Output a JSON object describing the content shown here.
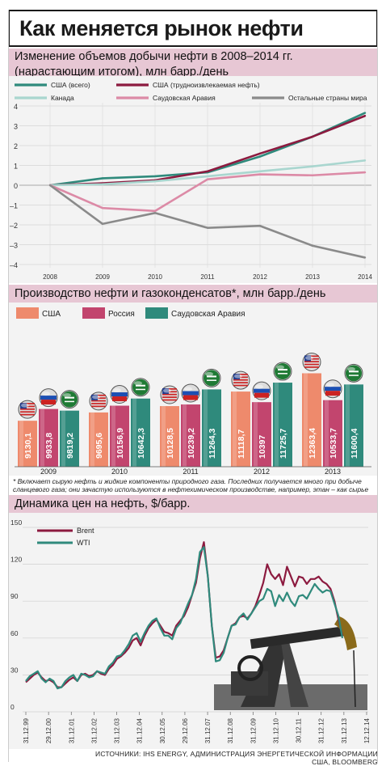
{
  "title": "Как меняется рынок нефти",
  "section1": {
    "title_line1": "Изменение объемов добычи нефти в 2008–2014 гг.",
    "title_line2": "(нарастающим итогом), млн барр./день"
  },
  "section2": {
    "title": "Производство нефти и газоконденсатов*, млн барр./день"
  },
  "section3": {
    "title": "Динамика цен на нефть, $/барр."
  },
  "footnote": "* Включает сырую нефть и жидкие компоненты природного газа. Последних получается много при добыче сланцевого газа; они зачастую используются в нефтехимическом производстве, например, этан – как сырье для пластмасс.",
  "source": "ИСТОЧНИКИ: IHS ENERGY, АДМИНИСТРАЦИЯ ЭНЕРГЕТИЧЕСКОЙ ИНФОРМАЦИИ США, BLOOMBERG",
  "colors": {
    "usa_total": "#2f8a7c",
    "usa_tight": "#8c1a3f",
    "canada": "#a9d6cf",
    "saudi_line": "#dc8aa6",
    "others": "#8a8a8a",
    "bar_usa": "#ee8a6c",
    "bar_russia": "#c2456e",
    "bar_saudi": "#2f8a7c",
    "brent": "#8c1a3f",
    "wti": "#2f8a7c",
    "band": "#e7c7d4"
  },
  "chart_data": [
    {
      "type": "line",
      "x": [
        "2008",
        "2009",
        "2010",
        "2011",
        "2012",
        "2013",
        "2014"
      ],
      "ylim": [
        -4,
        4
      ],
      "yticks": [
        4,
        3,
        2,
        1,
        0,
        -1,
        -2,
        -3,
        -4
      ],
      "grid": true,
      "legend_position": "top",
      "series": [
        {
          "name": "США (всего)",
          "values": [
            0,
            0.35,
            0.45,
            0.65,
            1.45,
            2.45,
            3.65
          ]
        },
        {
          "name": "США (трудноизвлекаемая нефть)",
          "values": [
            0,
            0.1,
            0.25,
            0.7,
            1.6,
            2.45,
            3.5
          ]
        },
        {
          "name": "Канада",
          "values": [
            0,
            0.05,
            0.2,
            0.45,
            0.7,
            0.95,
            1.25
          ]
        },
        {
          "name": "Саудовская Аравия",
          "values": [
            0,
            -1.15,
            -1.3,
            0.3,
            0.55,
            0.5,
            0.65
          ]
        },
        {
          "name": "Остальные страны мира",
          "values": [
            0,
            -1.95,
            -1.4,
            -2.15,
            -2.05,
            -3.05,
            -3.65
          ]
        }
      ]
    },
    {
      "type": "bar",
      "categories": [
        "2009",
        "2010",
        "2011",
        "2012",
        "2013"
      ],
      "legend_position": "top",
      "series": [
        {
          "name": "США",
          "values": [
            9130.1,
            9695.6,
            10128.5,
            11118.7,
            12363.4
          ],
          "labels": [
            "9130,1",
            "9695,6",
            "10128,5",
            "11118,7",
            "12363,4"
          ]
        },
        {
          "name": "Россия",
          "values": [
            9933.8,
            10156.9,
            10239.2,
            10397,
            10533.7
          ],
          "labels": [
            "9933,8",
            "10156,9",
            "10239,2",
            "10397",
            "10533,7"
          ]
        },
        {
          "name": "Саудовская Аравия",
          "values": [
            9819.2,
            10642.3,
            11264.3,
            11725.7,
            11600.4
          ],
          "labels": [
            "9819,2",
            "10642,3",
            "11264,3",
            "11725,7",
            "11600,4"
          ]
        }
      ]
    },
    {
      "type": "line",
      "x_tick_labels": [
        "31.12.99",
        "29.12.00",
        "31.12.01",
        "31.12.02",
        "31.12.03",
        "31.12.04",
        "30.12.05",
        "29.12.06",
        "31.12.07",
        "31.12.08",
        "31.12.09",
        "31.12.10",
        "30.12.11",
        "31.12.12",
        "31.12.13",
        "12.12.14"
      ],
      "ylim": [
        0,
        150
      ],
      "yticks": [
        0,
        30,
        60,
        90,
        120,
        150
      ],
      "grid": true,
      "legend_position": "top-left",
      "series": [
        {
          "name": "Brent",
          "values": [
            24,
            27,
            30,
            32,
            28,
            25,
            26,
            24,
            20,
            20,
            23,
            26,
            28,
            25,
            30,
            31,
            29,
            30,
            33,
            31,
            30,
            35,
            38,
            43,
            45,
            48,
            52,
            58,
            60,
            54,
            62,
            68,
            72,
            75,
            70,
            65,
            64,
            62,
            70,
            74,
            78,
            85,
            95,
            105,
            125,
            138,
            110,
            70,
            44,
            45,
            50,
            60,
            70,
            72,
            77,
            78,
            76,
            80,
            86,
            95,
            105,
            120,
            112,
            108,
            112,
            103,
            118,
            110,
            102,
            110,
            109,
            104,
            108,
            108,
            110,
            106,
            104,
            100,
            90,
            75,
            62
          ]
        },
        {
          "name": "WTI",
          "values": [
            25,
            29,
            31,
            33,
            27,
            24,
            27,
            25,
            19,
            20,
            25,
            28,
            30,
            25,
            31,
            30,
            28,
            29,
            33,
            32,
            31,
            37,
            40,
            45,
            46,
            50,
            55,
            62,
            64,
            57,
            64,
            70,
            74,
            76,
            68,
            62,
            62,
            59,
            68,
            72,
            80,
            88,
            95,
            108,
            130,
            134,
            110,
            70,
            41,
            42,
            48,
            60,
            70,
            71,
            77,
            80,
            75,
            80,
            85,
            90,
            92,
            100,
            98,
            86,
            95,
            90,
            97,
            90,
            86,
            94,
            95,
            92,
            98,
            104,
            100,
            97,
            99,
            98,
            88,
            78,
            60
          ]
        }
      ]
    }
  ]
}
